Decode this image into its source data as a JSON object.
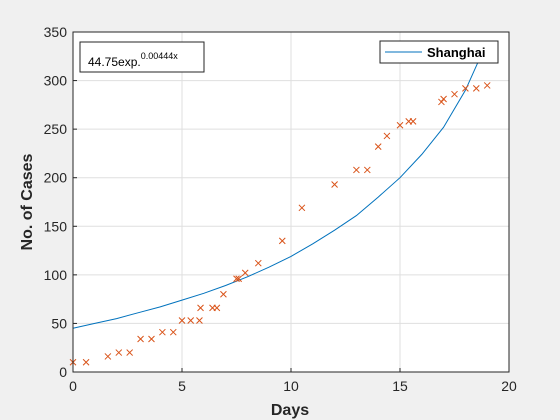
{
  "chart_data": {
    "type": "scatter",
    "xlabel": "Days",
    "ylabel": "No. of Cases",
    "xlim": [
      0,
      20
    ],
    "ylim": [
      0,
      350
    ],
    "xticks": [
      0,
      5,
      10,
      15,
      20
    ],
    "yticks": [
      0,
      50,
      100,
      150,
      200,
      250,
      300,
      350
    ],
    "grid": true,
    "legend_placement": "top-right",
    "annotation": {
      "base": "44.75exp.",
      "exponent": "0.00444x"
    },
    "series": [
      {
        "name": "Shanghai",
        "kind": "line",
        "color": "#0072bd",
        "x": [
          0,
          1,
          2,
          3,
          4,
          5,
          6,
          7,
          8,
          9,
          10,
          11,
          12,
          13,
          14,
          15,
          16,
          17,
          18,
          19
        ],
        "y": [
          45,
          50,
          55,
          61,
          67,
          74,
          81,
          89,
          98,
          108,
          119,
          132,
          146,
          161,
          180,
          200,
          224,
          252,
          290,
          340
        ]
      },
      {
        "kind": "markers",
        "marker": "x",
        "color": "#d95319",
        "x": [
          0,
          0.6,
          1.6,
          2.1,
          2.6,
          3.1,
          3.6,
          4.1,
          4.6,
          5.0,
          5.4,
          5.8,
          5.85,
          6.4,
          6.6,
          6.9,
          7.5,
          7.6,
          7.9,
          8.5,
          9.6,
          10.5,
          12.0,
          13.0,
          13.5,
          14.0,
          14.4,
          15.0,
          15.4,
          15.6,
          16.9,
          17.0,
          17.5,
          18.0,
          18.5,
          19.0
        ],
        "y": [
          10,
          10,
          16,
          20,
          20,
          34,
          34,
          41,
          41,
          53,
          53,
          53,
          66,
          66,
          66,
          80,
          96,
          96,
          102,
          112,
          135,
          169,
          193,
          208,
          208,
          232,
          243,
          254,
          258,
          258,
          278,
          281,
          286,
          292,
          292,
          295
        ]
      }
    ]
  }
}
